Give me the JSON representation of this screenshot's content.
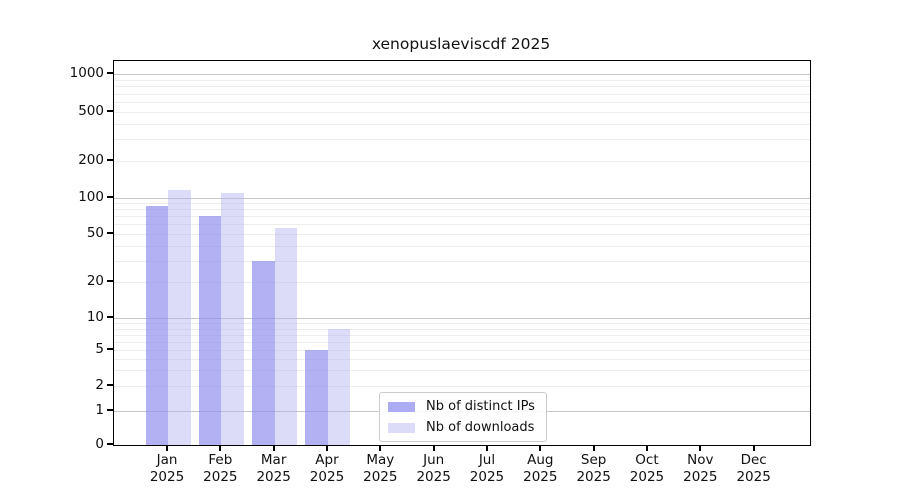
{
  "title": "xenopuslaeviscdf 2025",
  "legend": {
    "items": [
      {
        "label": "Nb of distinct IPs",
        "key": "ips"
      },
      {
        "label": "Nb of downloads",
        "key": "downloads"
      }
    ]
  },
  "colors": {
    "ips_fill": "rgba(140,140,238,0.68)",
    "downloads_fill": "rgba(178,178,242,0.45)",
    "ips_swatch": "#acacf4",
    "downloads_swatch": "#dcdcf9",
    "grid_major": "#c6c6c6",
    "grid_minor": "#ededed",
    "axis": "#000000"
  },
  "chart_data": {
    "type": "bar",
    "title": "xenopuslaeviscdf 2025",
    "categories": [
      "Jan 2025",
      "Feb 2025",
      "Mar 2025",
      "Apr 2025",
      "May 2025",
      "Jun 2025",
      "Jul 2025",
      "Aug 2025",
      "Sep 2025",
      "Oct 2025",
      "Nov 2025",
      "Dec 2025"
    ],
    "series": [
      {
        "name": "Nb of distinct IPs",
        "values": [
          85,
          70,
          30,
          5,
          0,
          0,
          0,
          0,
          0,
          0,
          0,
          0
        ]
      },
      {
        "name": "Nb of downloads",
        "values": [
          115,
          110,
          56,
          8,
          0,
          0,
          0,
          0,
          0,
          0,
          0,
          0
        ]
      }
    ],
    "y_axis": {
      "scale": "symlog",
      "ticks": [
        0,
        1,
        2,
        5,
        10,
        20,
        50,
        100,
        200,
        500,
        1000
      ],
      "range": [
        0,
        1280
      ],
      "grid": true
    },
    "x_axis": {
      "grid": false
    },
    "legend_position": "lower center"
  }
}
